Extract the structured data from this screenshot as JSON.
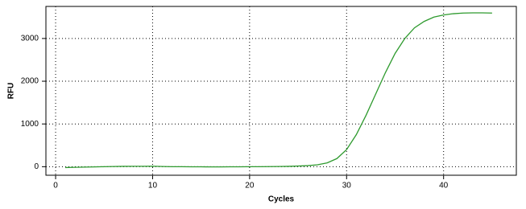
{
  "chart_data": {
    "type": "line",
    "x_label": "Cycles",
    "y_label": "RFU",
    "x": [
      1,
      2,
      3,
      4,
      5,
      6,
      7,
      8,
      9,
      10,
      11,
      12,
      13,
      14,
      15,
      16,
      17,
      18,
      19,
      20,
      21,
      22,
      23,
      24,
      25,
      26,
      27,
      28,
      29,
      30,
      31,
      32,
      33,
      34,
      35,
      36,
      37,
      38,
      39,
      40,
      41,
      42,
      43,
      44,
      45
    ],
    "series": [
      {
        "name": "RFU",
        "color": "#2e9a2e",
        "values": [
          -20,
          -15,
          -10,
          -5,
          0,
          5,
          8,
          10,
          10,
          12,
          5,
          0,
          0,
          -2,
          -3,
          -5,
          -5,
          -3,
          -2,
          0,
          0,
          2,
          5,
          8,
          15,
          25,
          45,
          90,
          190,
          400,
          750,
          1200,
          1700,
          2200,
          2650,
          3000,
          3250,
          3400,
          3500,
          3550,
          3580,
          3595,
          3600,
          3600,
          3595
        ]
      }
    ],
    "xlim": [
      -1,
      47.5
    ],
    "ylim": [
      -200,
      3750
    ],
    "xticks": [
      0,
      10,
      20,
      30,
      40
    ],
    "yticks": [
      0,
      1000,
      2000,
      3000
    ],
    "grid": true
  }
}
